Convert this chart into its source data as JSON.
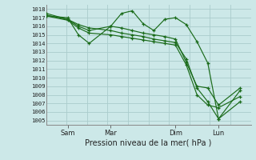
{
  "xlabel": "Pression niveau de la mer( hPa )",
  "background_color": "#cce8e8",
  "grid_color": "#aacccc",
  "line_color": "#1a6b1a",
  "ylim": [
    1004.5,
    1018.5
  ],
  "yticks": [
    1005,
    1006,
    1007,
    1008,
    1009,
    1010,
    1011,
    1012,
    1013,
    1014,
    1015,
    1016,
    1017,
    1018
  ],
  "xtick_labels": [
    "Sam",
    "Mar",
    "Dim",
    "Lun"
  ],
  "xtick_positions": [
    1,
    3,
    6,
    8
  ],
  "xlim": [
    0,
    9.5
  ],
  "num_vcols": 10,
  "series": [
    {
      "x": [
        0,
        1,
        1.5,
        2,
        3,
        3.5,
        4,
        4.5,
        5,
        5.5,
        6,
        6.5,
        7,
        7.5,
        8,
        9
      ],
      "y": [
        1017.2,
        1017.0,
        1015.0,
        1014.0,
        1016.0,
        1017.5,
        1017.8,
        1016.3,
        1015.5,
        1016.8,
        1017.0,
        1016.2,
        1014.2,
        1011.7,
        1005.2,
        1008.5
      ]
    },
    {
      "x": [
        0,
        1,
        1.5,
        2,
        3,
        3.5,
        4,
        4.5,
        5,
        5.5,
        6,
        6.5,
        7,
        7.5,
        8,
        9
      ],
      "y": [
        1017.5,
        1016.8,
        1016.0,
        1015.5,
        1016.0,
        1015.8,
        1015.5,
        1015.2,
        1015.0,
        1014.8,
        1014.5,
        1011.8,
        1009.0,
        1008.8,
        1006.8,
        1008.8
      ]
    },
    {
      "x": [
        0,
        1,
        1.5,
        2,
        3,
        3.5,
        4,
        4.5,
        5,
        5.5,
        6,
        6.5,
        7,
        7.5,
        8,
        9
      ],
      "y": [
        1017.3,
        1016.8,
        1016.2,
        1015.8,
        1015.5,
        1015.2,
        1015.0,
        1014.8,
        1014.5,
        1014.3,
        1014.1,
        1012.2,
        1008.8,
        1007.2,
        1005.2,
        1007.2
      ]
    },
    {
      "x": [
        0,
        1,
        1.5,
        2,
        3,
        3.5,
        4,
        4.5,
        5,
        5.5,
        6,
        6.5,
        7,
        7.5,
        8,
        9
      ],
      "y": [
        1017.2,
        1016.7,
        1015.8,
        1015.2,
        1015.0,
        1014.8,
        1014.6,
        1014.4,
        1014.2,
        1014.0,
        1013.8,
        1011.5,
        1008.0,
        1006.8,
        1006.5,
        1007.8
      ]
    }
  ]
}
